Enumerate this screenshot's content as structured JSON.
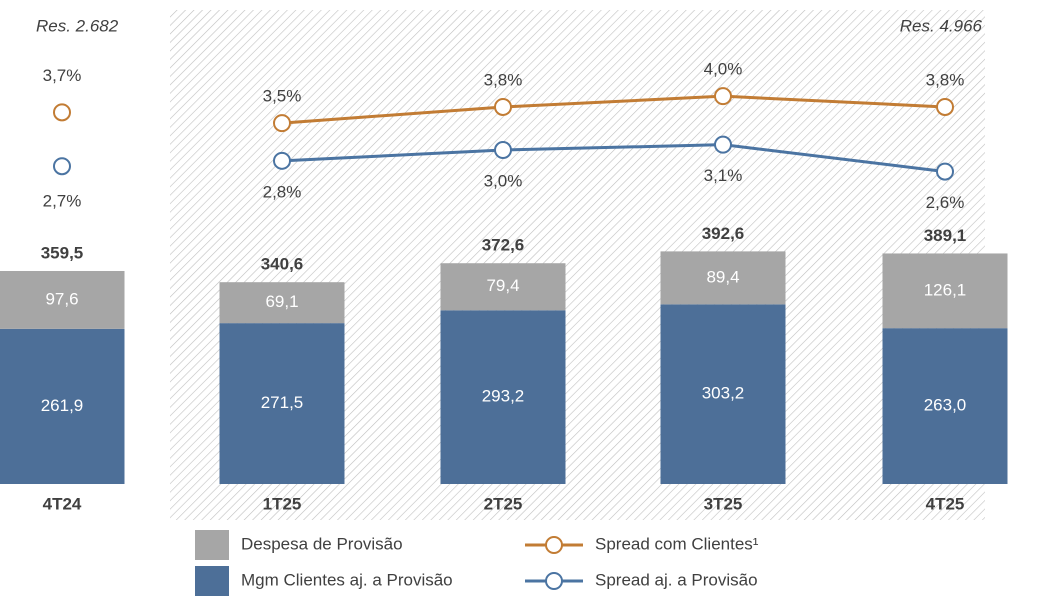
{
  "chart_data": {
    "type": "bar",
    "stacked": true,
    "categories": [
      "4T24",
      "1T25",
      "2T25",
      "3T25",
      "4T25"
    ],
    "series": [
      {
        "name": "Mgm Clientes aj. a Provisão",
        "color": "#4d6f98",
        "values": [
          261.9,
          271.5,
          293.2,
          303.2,
          263.0
        ],
        "value_labels": [
          "261,9",
          "271,5",
          "293,2",
          "303,2",
          "263,0"
        ]
      },
      {
        "name": "Despesa de Provisão",
        "color": "#a6a6a6",
        "values": [
          97.6,
          69.1,
          79.4,
          89.4,
          126.1
        ],
        "value_labels": [
          "97,6",
          "69,1",
          "79,4",
          "89,4",
          "126,1"
        ]
      },
      {
        "name": "Spread com Clientes¹",
        "type": "line",
        "axis": "y2",
        "color": "#c27c34",
        "label_position": "above",
        "values": [
          3.7,
          3.5,
          3.8,
          4.0,
          3.8
        ],
        "value_labels": [
          "3,7%",
          "3,5%",
          "3,8%",
          "4,0%",
          "3,8%"
        ]
      },
      {
        "name": "Spread aj. a Provisão",
        "type": "line",
        "axis": "y2",
        "color": "#4b74a2",
        "label_position": "below",
        "values": [
          2.7,
          2.8,
          3.0,
          3.1,
          2.6
        ],
        "value_labels": [
          "2,7%",
          "2,8%",
          "3,0%",
          "3,1%",
          "2,6%"
        ]
      }
    ],
    "total_labels": [
      "359,5",
      "340,6",
      "372,6",
      "392,6",
      "389,1"
    ],
    "annotations": [
      "Res. 2.682",
      "Res. 4.966"
    ],
    "ylim": [
      0,
      800
    ],
    "y2lim": [
      -3.2,
      5.6
    ],
    "first_category_separate": true,
    "hatch": true,
    "legend": "bottom"
  }
}
